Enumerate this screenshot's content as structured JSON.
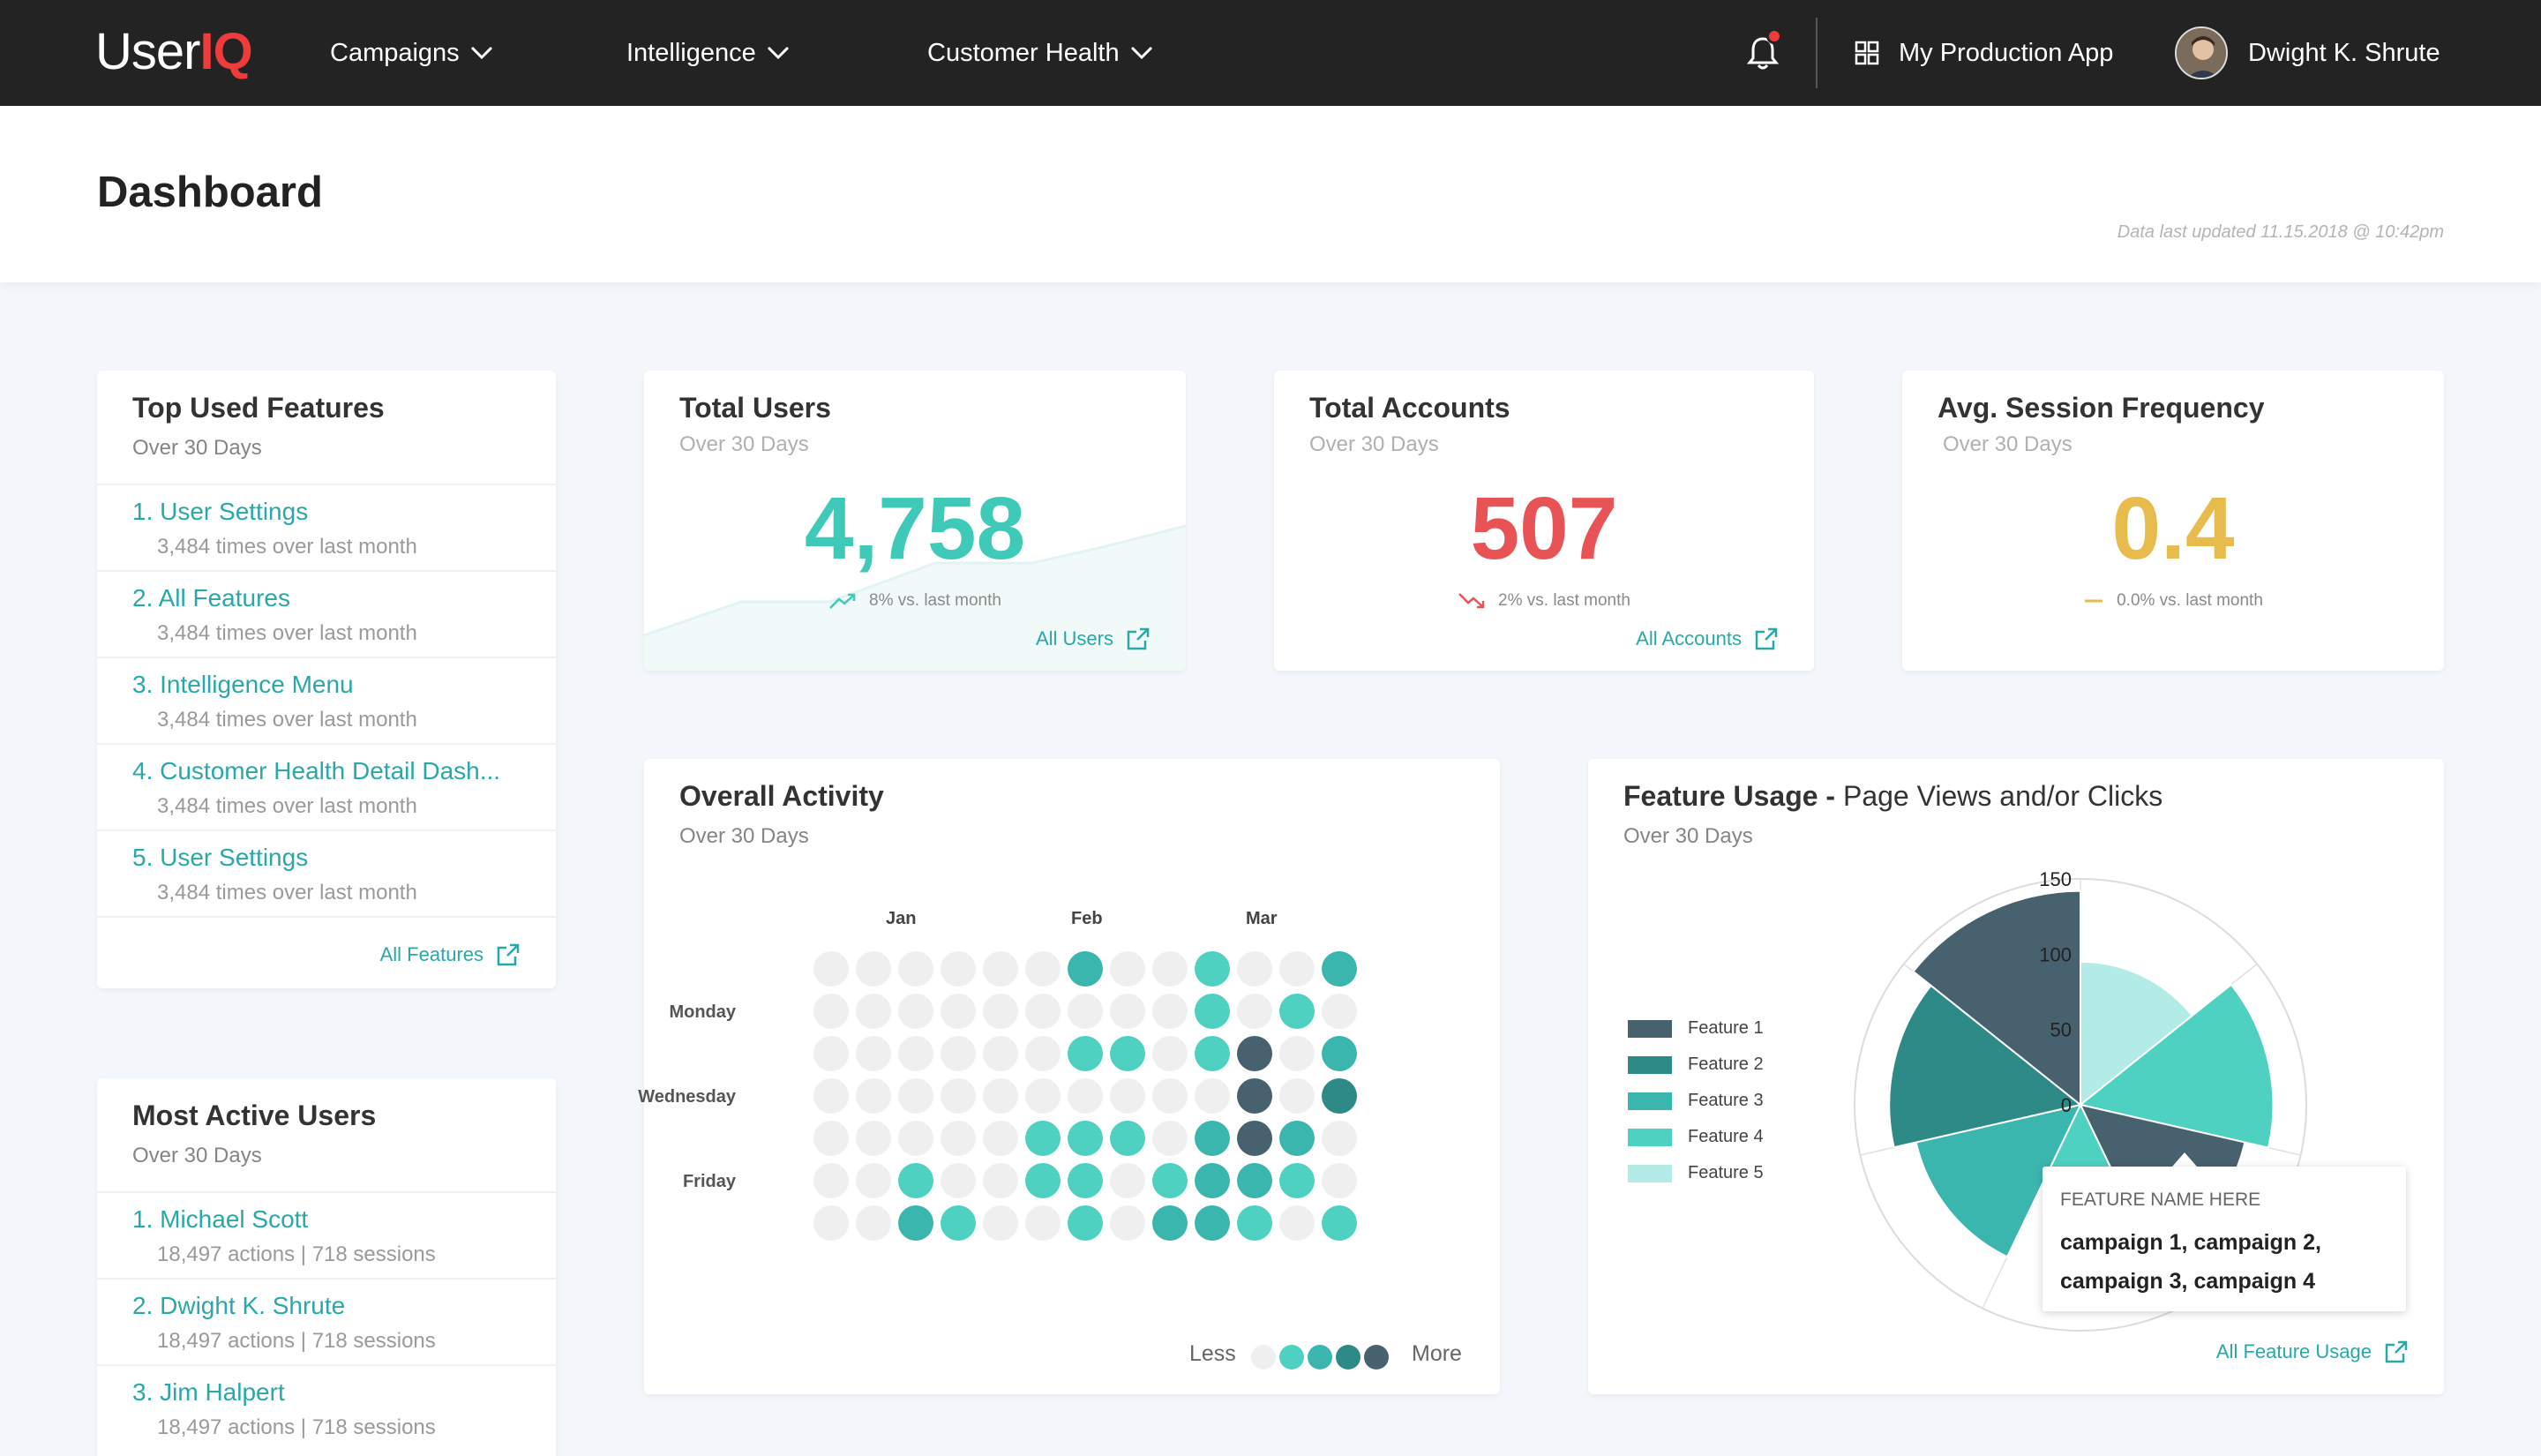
{
  "nav": {
    "logo_user": "User",
    "logo_iq": "IQ",
    "links": [
      "Campaigns",
      "Intelligence",
      "Customer Health"
    ],
    "app_name": "My Production App",
    "user_name": "Dwight K. Shrute"
  },
  "header": {
    "title": "Dashboard",
    "updated": "Data last updated 11.15.2018 @ 10:42pm"
  },
  "top_features": {
    "title": "Top Used Features",
    "subtitle": "Over 30 Days",
    "items": [
      {
        "label": "1. User Settings",
        "detail": "3,484 times over last month"
      },
      {
        "label": "2. All Features",
        "detail": "3,484 times over last month"
      },
      {
        "label": "3. Intelligence Menu",
        "detail": "3,484 times over last month"
      },
      {
        "label": "4. Customer Health Detail Dash...",
        "detail": "3,484 times over last month"
      },
      {
        "label": "5. User Settings",
        "detail": "3,484 times over last month"
      }
    ],
    "link": "All Features"
  },
  "active_users": {
    "title": "Most Active Users",
    "subtitle": "Over 30 Days",
    "items": [
      {
        "label": "1. Michael Scott",
        "detail": "18,497 actions | 718 sessions"
      },
      {
        "label": "2. Dwight K. Shrute",
        "detail": "18,497 actions | 718 sessions"
      },
      {
        "label": "3. Jim Halpert",
        "detail": "18,497 actions | 718 sessions"
      }
    ]
  },
  "stats": [
    {
      "title": "Total Users",
      "subtitle": "Over 30 Days",
      "value": "4,758",
      "delta": "8% vs. last month",
      "link": "All Users",
      "color": "#3fc9b8"
    },
    {
      "title": "Total Accounts",
      "subtitle": "Over 30 Days",
      "value": "507",
      "delta": "2% vs. last month",
      "link": "All Accounts",
      "color": "#e85455"
    },
    {
      "title": "Avg. Session Frequency",
      "subtitle": "Over 30 Days",
      "value": "0.4",
      "delta": "0.0% vs. last month",
      "link": "",
      "color": "#e8bb4d"
    }
  ],
  "activity": {
    "title": "Overall Activity",
    "subtitle": "Over 30 Days",
    "months": [
      "Jan",
      "Feb",
      "Mar"
    ],
    "days": [
      "Monday",
      "Wednesday",
      "Friday"
    ],
    "legend_less": "Less",
    "legend_more": "More",
    "levels": [
      "#efefef",
      "#4fd1c1",
      "#3bb6ae",
      "#2e8a86",
      "#47616e"
    ],
    "grid": [
      [
        0,
        0,
        0,
        0,
        0,
        0,
        2,
        0,
        0,
        1,
        0,
        0,
        2
      ],
      [
        0,
        0,
        0,
        0,
        0,
        0,
        0,
        0,
        0,
        1,
        0,
        1,
        0
      ],
      [
        0,
        0,
        0,
        0,
        0,
        0,
        1,
        1,
        0,
        1,
        4,
        0,
        2
      ],
      [
        0,
        0,
        0,
        0,
        0,
        0,
        0,
        0,
        0,
        0,
        4,
        0,
        3
      ],
      [
        0,
        0,
        0,
        0,
        0,
        1,
        1,
        1,
        0,
        2,
        4,
        2,
        0
      ],
      [
        0,
        0,
        1,
        0,
        0,
        1,
        1,
        0,
        1,
        2,
        2,
        1,
        0
      ],
      [
        0,
        0,
        2,
        1,
        0,
        0,
        1,
        0,
        2,
        2,
        1,
        0,
        1
      ]
    ]
  },
  "feature_usage": {
    "title": "Feature Usage - ",
    "title_suffix": "Page Views and/or Clicks",
    "subtitle": "Over 30 Days",
    "link": "All Feature Usage",
    "tooltip_head": "FEATURE NAME HERE",
    "tooltip_body": "campaign 1, campaign 2, campaign 3, campaign 4",
    "axis_ticks": [
      "150",
      "100",
      "50",
      "0"
    ]
  },
  "chart_data": {
    "type": "polar-area",
    "max": 150,
    "series": [
      {
        "name": "Feature 1",
        "color": "#47616e"
      },
      {
        "name": "Feature 2",
        "color": "#2e8a86"
      },
      {
        "name": "Feature 3",
        "color": "#3bb6ae"
      },
      {
        "name": "Feature 4",
        "color": "#4fd1c1"
      },
      {
        "name": "Feature 5",
        "color": "#b3ebe6"
      }
    ],
    "segments": [
      {
        "series": "Feature 5",
        "value": 95
      },
      {
        "series": "Feature 4",
        "value": 128
      },
      {
        "series": "Feature 1",
        "value": 112
      },
      {
        "series": "Feature 4",
        "value": 52
      },
      {
        "series": "Feature 3",
        "value": 112
      },
      {
        "series": "Feature 2",
        "value": 127
      },
      {
        "series": "Feature 1",
        "value": 142
      }
    ]
  }
}
